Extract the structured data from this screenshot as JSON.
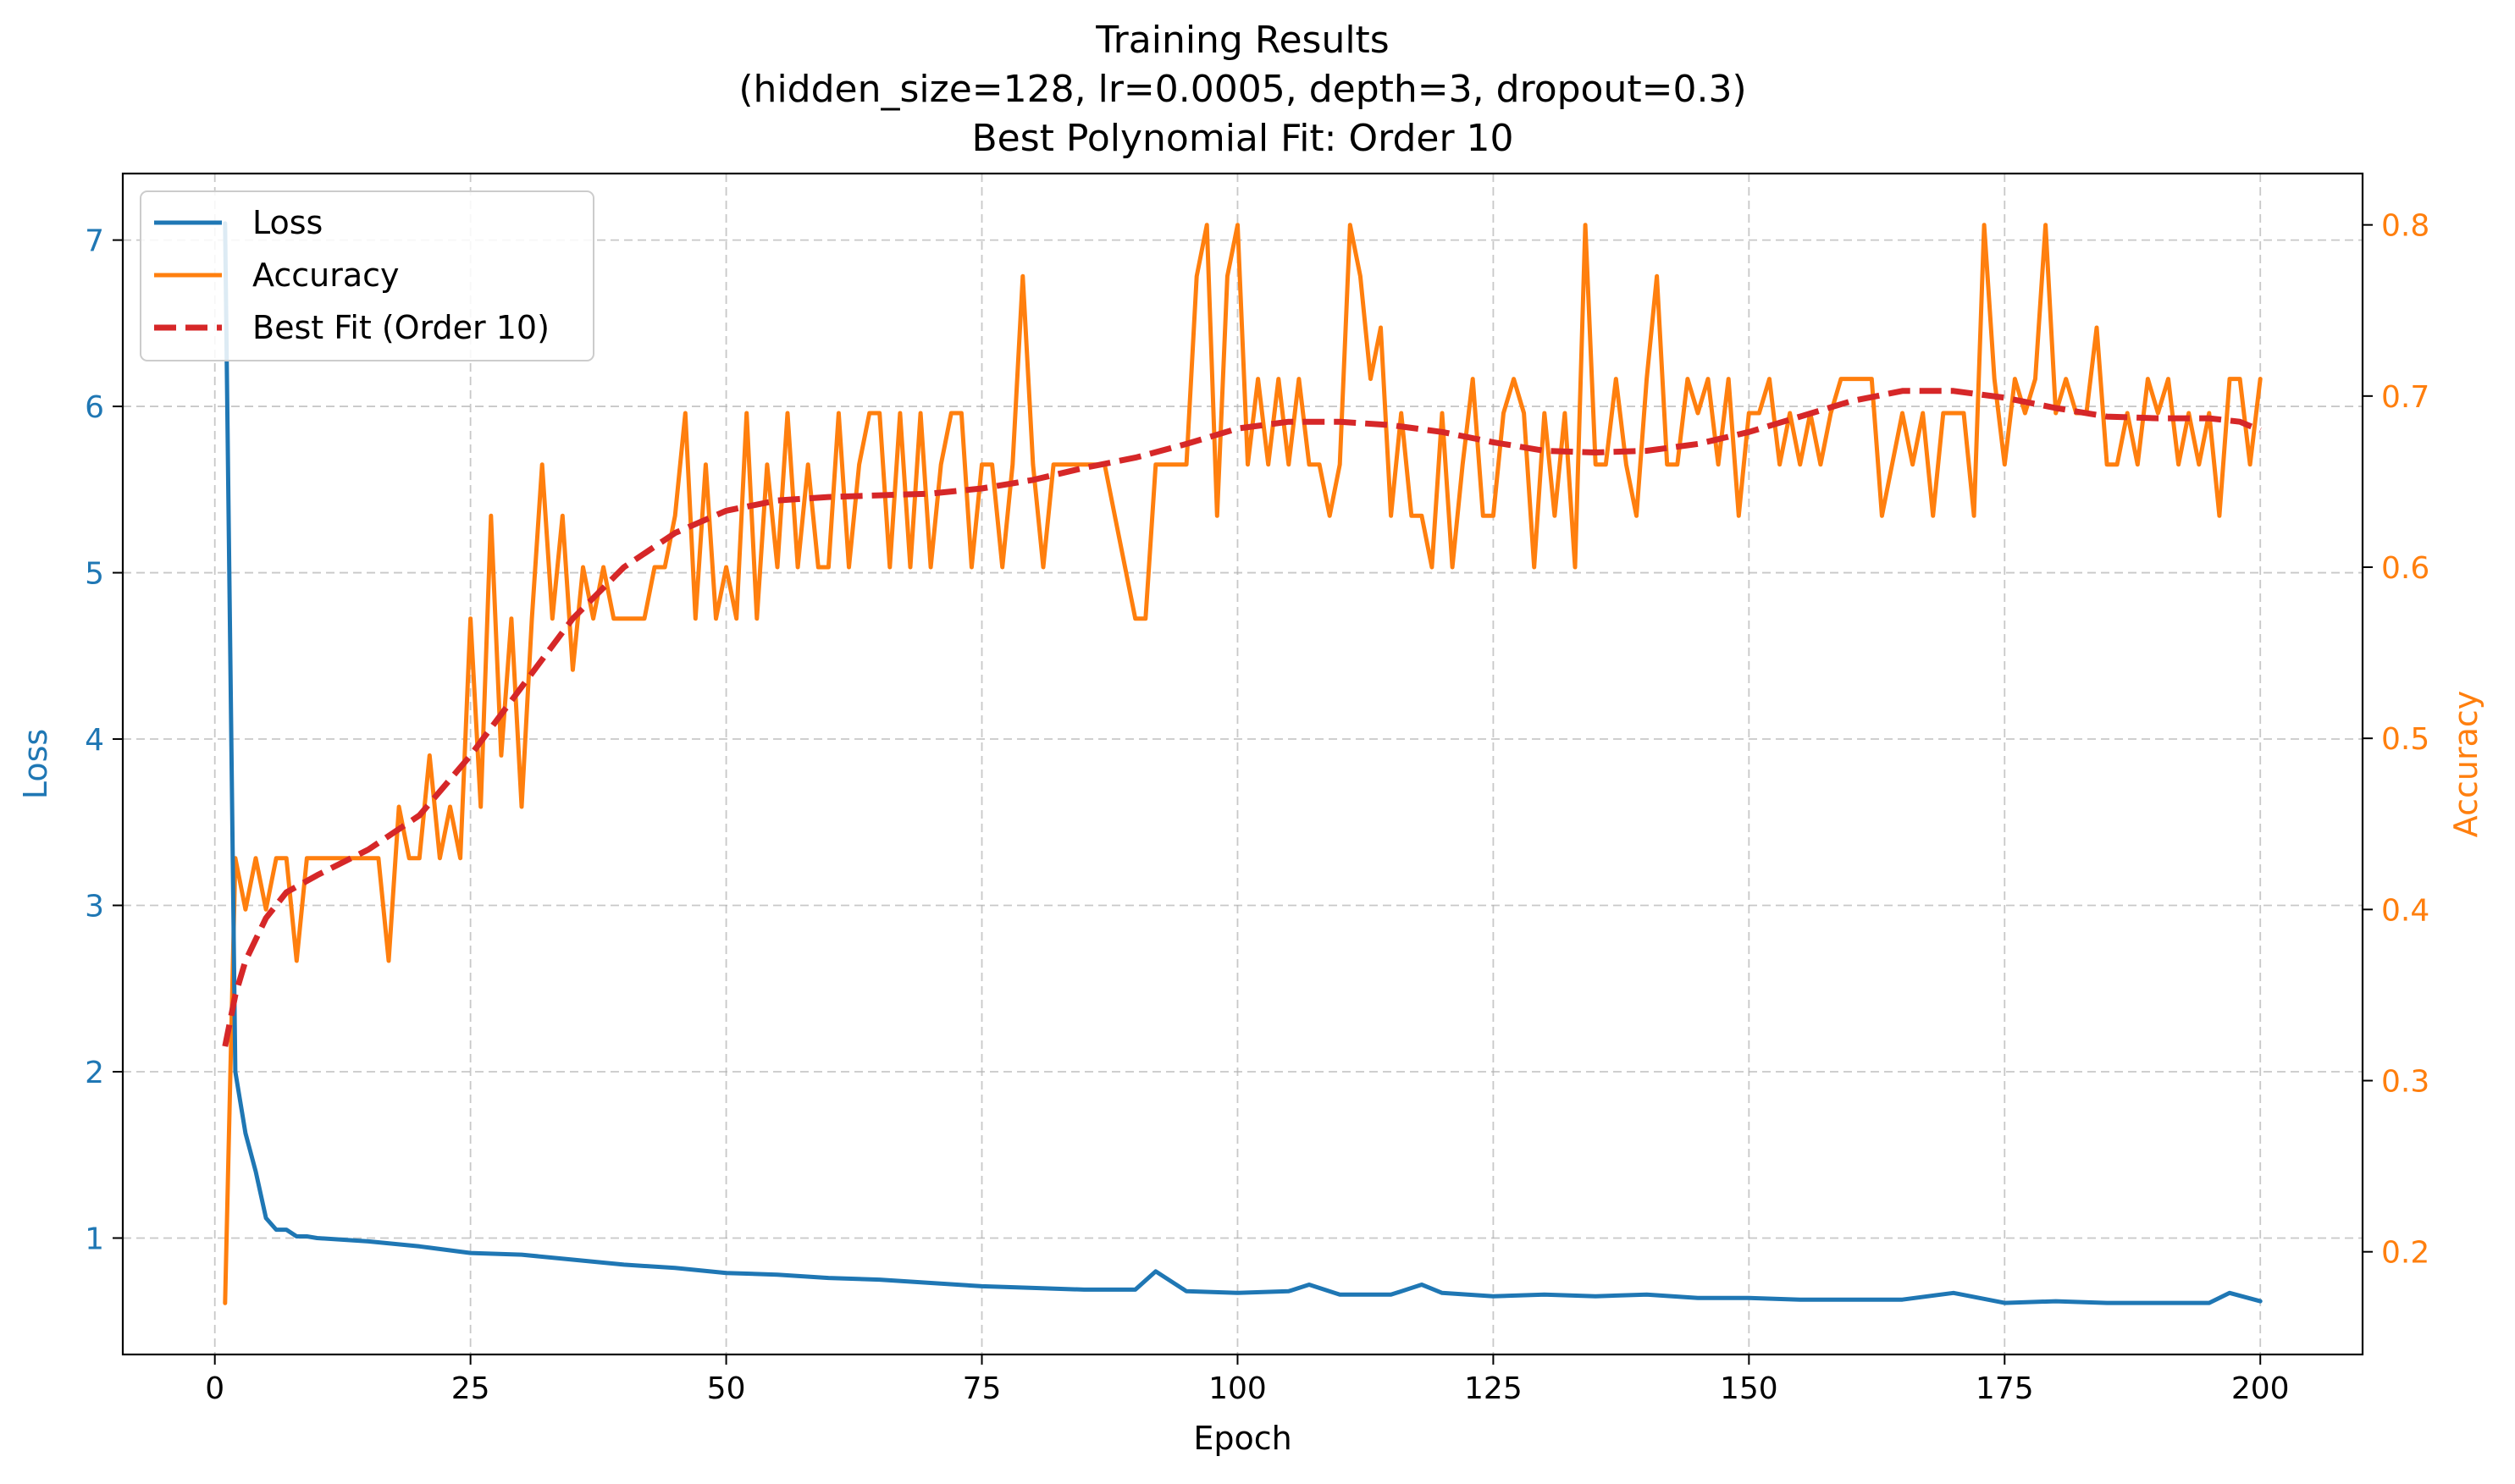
{
  "chart_data": {
    "type": "line",
    "title_lines": [
      "Training Results",
      "(hidden_size=128, lr=0.0005, depth=3, dropout=0.3)",
      "Best Polynomial Fit: Order 10"
    ],
    "xlabel": "Epoch",
    "ylabel_left": "Loss",
    "ylabel_right": "Accuracy",
    "xlim": [
      -9,
      210
    ],
    "ylim_left": [
      0.3,
      7.4
    ],
    "ylim_right": [
      0.14,
      0.83
    ],
    "xticks": [
      0,
      25,
      50,
      75,
      100,
      125,
      150,
      175,
      200
    ],
    "yticks_left": [
      1,
      2,
      3,
      4,
      5,
      6,
      7
    ],
    "yticks_right": [
      0.2,
      0.3,
      0.4,
      0.5,
      0.6,
      0.7,
      0.8
    ],
    "grid": true,
    "legend_position": "upper left",
    "colors": {
      "loss": "#1f77b4",
      "accuracy": "#ff7f0e",
      "fit": "#d62728",
      "axis_left": "#1f77b4",
      "axis_right": "#ff7f0e"
    },
    "series": [
      {
        "name": "Loss",
        "axis": "left",
        "style": "solid",
        "x": [
          1,
          2,
          3,
          4,
          5,
          6,
          7,
          8,
          9,
          10,
          15,
          20,
          25,
          30,
          35,
          40,
          45,
          50,
          55,
          60,
          65,
          70,
          75,
          80,
          85,
          90,
          92,
          95,
          100,
          105,
          107,
          110,
          115,
          118,
          120,
          125,
          130,
          135,
          140,
          145,
          150,
          155,
          160,
          165,
          170,
          175,
          180,
          185,
          190,
          195,
          197,
          200
        ],
        "values": [
          7.1,
          2.0,
          1.63,
          1.4,
          1.12,
          1.05,
          1.05,
          1.01,
          1.01,
          1.0,
          0.98,
          0.95,
          0.91,
          0.9,
          0.87,
          0.84,
          0.82,
          0.79,
          0.78,
          0.76,
          0.75,
          0.73,
          0.71,
          0.7,
          0.69,
          0.69,
          0.8,
          0.68,
          0.67,
          0.68,
          0.72,
          0.66,
          0.66,
          0.72,
          0.67,
          0.65,
          0.66,
          0.65,
          0.66,
          0.64,
          0.64,
          0.63,
          0.63,
          0.63,
          0.67,
          0.61,
          0.62,
          0.61,
          0.61,
          0.61,
          0.67,
          0.62
        ]
      },
      {
        "name": "Accuracy",
        "axis": "right",
        "style": "solid",
        "x": [
          1,
          2,
          3,
          4,
          5,
          6,
          7,
          8,
          9,
          10,
          11,
          12,
          13,
          14,
          15,
          16,
          17,
          18,
          19,
          20,
          21,
          22,
          23,
          24,
          25,
          26,
          27,
          28,
          29,
          30,
          31,
          32,
          33,
          34,
          35,
          36,
          37,
          38,
          39,
          40,
          41,
          42,
          43,
          44,
          45,
          46,
          47,
          48,
          49,
          50,
          51,
          52,
          53,
          54,
          55,
          56,
          57,
          58,
          59,
          60,
          61,
          62,
          63,
          64,
          65,
          66,
          67,
          68,
          69,
          70,
          71,
          72,
          73,
          74,
          75,
          76,
          77,
          78,
          79,
          80,
          81,
          82,
          83,
          84,
          85,
          86,
          87,
          88,
          89,
          90,
          91,
          92,
          93,
          94,
          95,
          96,
          97,
          98,
          99,
          100,
          101,
          102,
          103,
          104,
          105,
          106,
          107,
          108,
          109,
          110,
          111,
          112,
          113,
          114,
          115,
          116,
          117,
          118,
          119,
          120,
          121,
          122,
          123,
          124,
          125,
          126,
          127,
          128,
          129,
          130,
          131,
          132,
          133,
          134,
          135,
          136,
          137,
          138,
          139,
          140,
          141,
          142,
          143,
          144,
          145,
          146,
          147,
          148,
          149,
          150,
          151,
          152,
          153,
          154,
          155,
          156,
          157,
          158,
          159,
          160,
          161,
          162,
          163,
          164,
          165,
          166,
          167,
          168,
          169,
          170,
          171,
          172,
          173,
          174,
          175,
          176,
          177,
          178,
          179,
          180,
          181,
          182,
          183,
          184,
          185,
          186,
          187,
          188,
          189,
          190,
          191,
          192,
          193,
          194,
          195,
          196,
          197,
          198,
          199,
          200
        ],
        "values": [
          0.17,
          0.43,
          0.4,
          0.43,
          0.4,
          0.43,
          0.43,
          0.37,
          0.43,
          0.43,
          0.43,
          0.43,
          0.43,
          0.43,
          0.43,
          0.43,
          0.37,
          0.46,
          0.43,
          0.43,
          0.49,
          0.43,
          0.46,
          0.43,
          0.57,
          0.46,
          0.63,
          0.49,
          0.57,
          0.46,
          0.57,
          0.66,
          0.57,
          0.63,
          0.54,
          0.6,
          0.57,
          0.6,
          0.57,
          0.57,
          0.57,
          0.57,
          0.6,
          0.6,
          0.63,
          0.69,
          0.57,
          0.66,
          0.57,
          0.6,
          0.57,
          0.69,
          0.57,
          0.66,
          0.6,
          0.69,
          0.6,
          0.66,
          0.6,
          0.6,
          0.69,
          0.6,
          0.66,
          0.69,
          0.69,
          0.6,
          0.69,
          0.6,
          0.69,
          0.6,
          0.66,
          0.69,
          0.69,
          0.6,
          0.66,
          0.66,
          0.6,
          0.66,
          0.77,
          0.66,
          0.6,
          0.66,
          0.66,
          0.66,
          0.66,
          0.66,
          0.66,
          0.63,
          0.6,
          0.57,
          0.57,
          0.66,
          0.66,
          0.66,
          0.66,
          0.77,
          0.8,
          0.63,
          0.77,
          0.8,
          0.66,
          0.71,
          0.66,
          0.71,
          0.66,
          0.71,
          0.66,
          0.66,
          0.63,
          0.66,
          0.8,
          0.77,
          0.71,
          0.74,
          0.63,
          0.69,
          0.63,
          0.63,
          0.6,
          0.69,
          0.6,
          0.66,
          0.71,
          0.63,
          0.63,
          0.69,
          0.71,
          0.69,
          0.6,
          0.69,
          0.63,
          0.69,
          0.6,
          0.8,
          0.66,
          0.66,
          0.71,
          0.66,
          0.63,
          0.71,
          0.77,
          0.66,
          0.66,
          0.71,
          0.69,
          0.71,
          0.66,
          0.71,
          0.63,
          0.69,
          0.69,
          0.71,
          0.66,
          0.69,
          0.66,
          0.69,
          0.66,
          0.69,
          0.71,
          0.71,
          0.71,
          0.71,
          0.63,
          0.66,
          0.69,
          0.66,
          0.69,
          0.63,
          0.69,
          0.69,
          0.69,
          0.63,
          0.8,
          0.71,
          0.66,
          0.71,
          0.69,
          0.71,
          0.8,
          0.69,
          0.71,
          0.69,
          0.69,
          0.74,
          0.66,
          0.66,
          0.69,
          0.66,
          0.71,
          0.69,
          0.71,
          0.66,
          0.69,
          0.66,
          0.69,
          0.63,
          0.71,
          0.71,
          0.66,
          0.71
        ]
      },
      {
        "name": "Best Fit (Order 10)",
        "axis": "right",
        "style": "dashed",
        "x": [
          1,
          2,
          3,
          5,
          7,
          10,
          15,
          20,
          25,
          30,
          35,
          40,
          45,
          50,
          55,
          60,
          65,
          70,
          75,
          80,
          85,
          90,
          95,
          100,
          105,
          110,
          115,
          120,
          125,
          130,
          135,
          140,
          145,
          150,
          155,
          160,
          165,
          170,
          175,
          180,
          185,
          190,
          195,
          198,
          200
        ],
        "values": [
          0.32,
          0.35,
          0.37,
          0.395,
          0.41,
          0.42,
          0.435,
          0.455,
          0.49,
          0.53,
          0.57,
          0.6,
          0.62,
          0.633,
          0.639,
          0.641,
          0.642,
          0.643,
          0.646,
          0.651,
          0.658,
          0.664,
          0.672,
          0.681,
          0.685,
          0.685,
          0.683,
          0.679,
          0.673,
          0.668,
          0.667,
          0.668,
          0.672,
          0.679,
          0.688,
          0.697,
          0.703,
          0.703,
          0.699,
          0.693,
          0.688,
          0.687,
          0.687,
          0.685,
          0.68
        ]
      }
    ]
  }
}
